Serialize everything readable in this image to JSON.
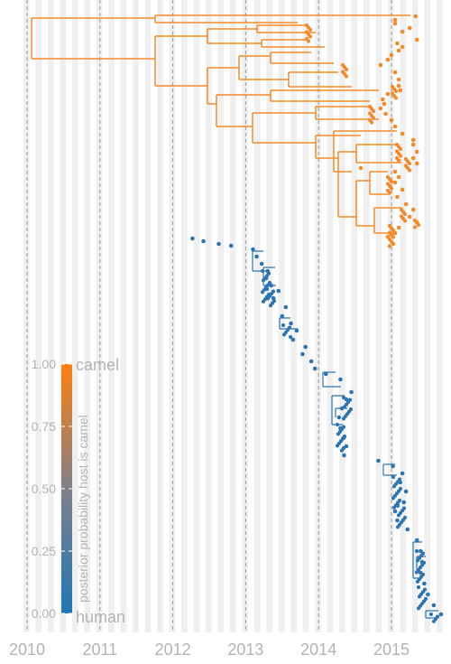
{
  "chart_data": {
    "type": "scatter",
    "subtype": "time-scaled phylogenetic tree colored by host",
    "title": "",
    "xlabel": "",
    "ylabel": "",
    "x_ticks": [
      "2010",
      "2011",
      "2012",
      "2013",
      "2014",
      "2015"
    ],
    "xlim": [
      2009.95,
      2015.75
    ],
    "grid": true,
    "colorbar": {
      "title": "posterior probability host is camel",
      "ticks": [
        "0.00",
        "0.25",
        "0.50",
        "0.75",
        "1.00"
      ],
      "low_label": "human",
      "high_label": "camel",
      "low_color": "#1f77b4",
      "high_color": "#ff7f0e"
    },
    "colors": {
      "camel": "#f58a2a",
      "human": "#2b74b5",
      "gridline": "#999999",
      "band": "#efefef"
    },
    "series": [
      {
        "name": "camel",
        "points": [
          [
            2015.33,
            18
          ],
          [
            2015.05,
            22
          ],
          [
            2015.05,
            26
          ],
          [
            2015.25,
            31
          ],
          [
            2015.15,
            35
          ],
          [
            2015.35,
            44
          ],
          [
            2015.08,
            48
          ],
          [
            2015.15,
            52
          ],
          [
            2015.1,
            56
          ],
          [
            2015.0,
            61
          ],
          [
            2014.95,
            66
          ],
          [
            2014.85,
            72
          ],
          [
            2015.05,
            80
          ],
          [
            2015.1,
            88
          ],
          [
            2015.1,
            95
          ],
          [
            2015.12,
            100
          ],
          [
            2014.95,
            104
          ],
          [
            2014.88,
            110
          ],
          [
            2014.9,
            115
          ],
          [
            2014.85,
            120
          ],
          [
            2014.92,
            126
          ],
          [
            2015.0,
            133
          ],
          [
            2015.05,
            140
          ],
          [
            2015.15,
            148
          ],
          [
            2015.3,
            155
          ],
          [
            2015.3,
            160
          ],
          [
            2015.35,
            168
          ],
          [
            2015.3,
            175
          ],
          [
            2015.35,
            181
          ],
          [
            2014.58,
            186
          ],
          [
            2015.05,
            190
          ],
          [
            2015.1,
            196
          ],
          [
            2015.05,
            202
          ],
          [
            2015.15,
            210
          ],
          [
            2015.08,
            218
          ],
          [
            2015.2,
            226
          ],
          [
            2015.3,
            232
          ],
          [
            2015.25,
            240
          ],
          [
            2015.35,
            246
          ],
          [
            2015.1,
            252
          ],
          [
            2015.05,
            258
          ],
          [
            2014.95,
            262
          ]
        ]
      },
      {
        "name": "human",
        "points": [
          [
            2012.27,
            264
          ],
          [
            2012.42,
            267
          ],
          [
            2012.63,
            270
          ],
          [
            2012.8,
            272
          ],
          [
            2013.1,
            276
          ],
          [
            2013.15,
            284
          ],
          [
            2013.22,
            292
          ],
          [
            2013.3,
            300
          ],
          [
            2013.28,
            308
          ],
          [
            2013.35,
            316
          ],
          [
            2013.45,
            322
          ],
          [
            2013.38,
            330
          ],
          [
            2013.55,
            340
          ],
          [
            2013.5,
            350
          ],
          [
            2013.62,
            358
          ],
          [
            2013.7,
            366
          ],
          [
            2013.65,
            376
          ],
          [
            2013.82,
            384
          ],
          [
            2013.78,
            392
          ],
          [
            2013.9,
            400
          ],
          [
            2013.95,
            408
          ],
          [
            2014.1,
            414
          ],
          [
            2014.3,
            420
          ],
          [
            2014.45,
            434
          ],
          [
            2014.38,
            442
          ],
          [
            2014.32,
            452
          ],
          [
            2014.28,
            462
          ],
          [
            2014.3,
            474
          ],
          [
            2014.35,
            484
          ],
          [
            2014.38,
            494
          ],
          [
            2014.35,
            504
          ],
          [
            2014.82,
            510
          ],
          [
            2015.02,
            516
          ],
          [
            2015.15,
            524
          ],
          [
            2015.12,
            534
          ],
          [
            2015.2,
            544
          ],
          [
            2015.17,
            556
          ],
          [
            2015.05,
            566
          ],
          [
            2015.08,
            576
          ],
          [
            2015.22,
            586
          ],
          [
            2015.35,
            598
          ],
          [
            2015.4,
            610
          ],
          [
            2015.42,
            622
          ],
          [
            2015.4,
            634
          ],
          [
            2015.45,
            646
          ],
          [
            2015.5,
            658
          ],
          [
            2015.58,
            670
          ],
          [
            2015.68,
            680
          ]
        ]
      }
    ]
  }
}
